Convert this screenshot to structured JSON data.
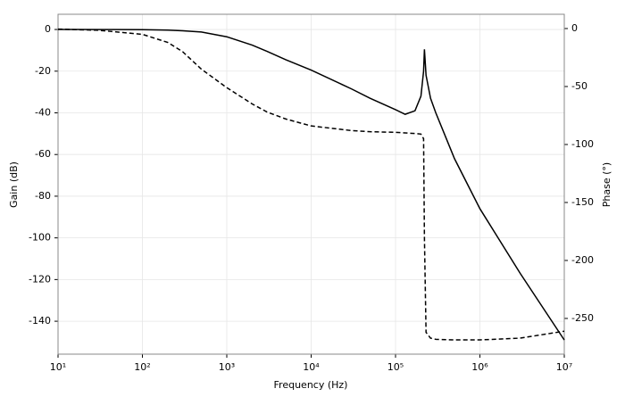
{
  "chart_data": {
    "type": "line",
    "xlabel": "Frequency (Hz)",
    "ylabel": "Gain (dB)",
    "y2label": "Phase (°)",
    "xscale": "log",
    "grid": true,
    "x": [
      10,
      30,
      100,
      200,
      300,
      500,
      1000,
      2000,
      3000,
      5000,
      10000,
      30000,
      50000,
      100000,
      130000,
      170000,
      200000,
      215000,
      220000,
      230000,
      260000,
      300000,
      500000,
      1000000,
      3000000,
      10000000
    ],
    "series": [
      {
        "color": "#000000",
        "dash": "solid",
        "axis": "y",
        "values": [
          0,
          -0.02,
          -0.1,
          -0.3,
          -0.6,
          -1.2,
          -3.5,
          -7.5,
          -10.5,
          -14.5,
          -19.5,
          -28.5,
          -33,
          -38.5,
          -40.7,
          -39,
          -32,
          -20,
          -9.5,
          -22,
          -33,
          -40,
          -62,
          -86,
          -117,
          -149
        ]
      },
      {
        "color": "#000000",
        "dash": "dashed",
        "axis": "y2",
        "values": [
          -0.5,
          -1.5,
          -5,
          -12,
          -20,
          -35,
          -51,
          -65,
          -72,
          -78,
          -84,
          -88,
          -89,
          -89.5,
          -90,
          -90.5,
          -91,
          -95,
          -180,
          -262,
          -267,
          -268,
          -268.5,
          -268.5,
          -267,
          -261
        ]
      }
    ],
    "xlim": [
      10,
      10000000
    ],
    "xticks": [
      {
        "value": 10,
        "label": "10¹"
      },
      {
        "value": 100,
        "label": "10²"
      },
      {
        "value": 1000,
        "label": "10³"
      },
      {
        "value": 10000,
        "label": "10⁴"
      },
      {
        "value": 100000,
        "label": "10⁵"
      },
      {
        "value": 1000000,
        "label": "10⁶"
      },
      {
        "value": 10000000,
        "label": "10⁷"
      }
    ],
    "ylim": [
      -155.8,
      7.3
    ],
    "yticks": [
      0,
      -20,
      -40,
      -60,
      -80,
      -100,
      -120,
      -140
    ],
    "y2lim": [
      -280.8,
      12.3
    ],
    "y2ticks": [
      0,
      -50,
      -100,
      -150,
      -200,
      -250
    ]
  }
}
